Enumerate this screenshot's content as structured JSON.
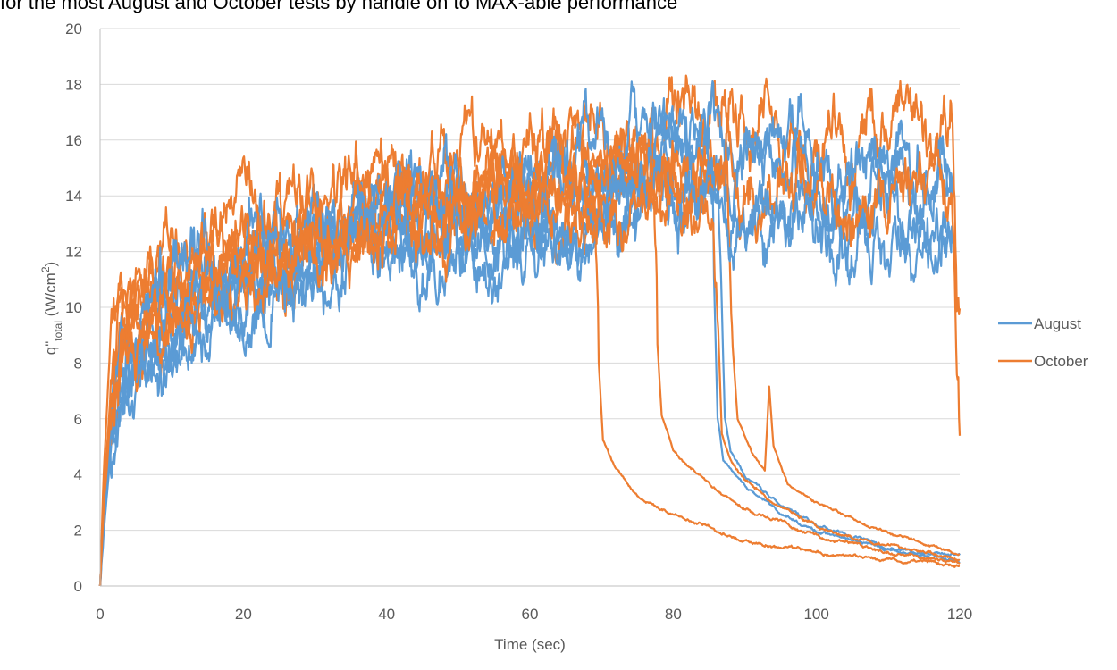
{
  "chart_data": {
    "type": "line",
    "title": "for the most August and October tests by handle on to MAX-able performance",
    "xlabel": "Time (sec)",
    "ylabel": {
      "main": "q\"",
      "subscript": "total",
      "units_pre": " (W/cm",
      "units_sup": "2",
      "units_post": ")"
    },
    "xlim": [
      0,
      120
    ],
    "ylim": [
      0,
      20
    ],
    "xticks": [
      0,
      20,
      40,
      60,
      80,
      100,
      120
    ],
    "yticks": [
      0,
      2,
      4,
      6,
      8,
      10,
      12,
      14,
      16,
      18,
      20
    ],
    "grid": "horizontal",
    "legend_position": "right",
    "series": [
      {
        "name": "August",
        "color": "#5b9bd5",
        "runs": [
          {
            "seed": 11,
            "trend": [
              [
                0,
                0
              ],
              [
                0.5,
                2
              ],
              [
                1.5,
                5
              ],
              [
                3,
                8.5
              ],
              [
                6,
                8
              ],
              [
                10,
                9
              ],
              [
                20,
                10.5
              ],
              [
                30,
                11.5
              ],
              [
                40,
                12.5
              ],
              [
                50,
                12.5
              ],
              [
                60,
                13
              ],
              [
                70,
                13.5
              ],
              [
                80,
                13.5
              ],
              [
                90,
                13.5
              ],
              [
                100,
                13
              ],
              [
                110,
                13
              ],
              [
                119,
                13
              ]
            ],
            "amp": 0.9
          },
          {
            "seed": 23,
            "trend": [
              [
                0,
                0
              ],
              [
                0.5,
                3
              ],
              [
                1.5,
                6
              ],
              [
                3,
                9
              ],
              [
                6,
                9.5
              ],
              [
                10,
                10
              ],
              [
                20,
                11.5
              ],
              [
                30,
                12.5
              ],
              [
                40,
                13
              ],
              [
                50,
                13.5
              ],
              [
                60,
                14
              ],
              [
                70,
                15
              ],
              [
                80,
                15
              ],
              [
                90,
                14.5
              ],
              [
                100,
                14
              ],
              [
                110,
                14.5
              ],
              [
                119,
                14.5
              ]
            ],
            "amp": 0.9
          },
          {
            "seed": 37,
            "trend": [
              [
                0,
                0
              ],
              [
                0.5,
                3
              ],
              [
                1.5,
                6
              ],
              [
                3,
                9
              ],
              [
                6,
                8.5
              ],
              [
                10,
                9.5
              ],
              [
                20,
                11
              ],
              [
                30,
                12
              ],
              [
                40,
                13
              ],
              [
                50,
                14
              ],
              [
                60,
                14.5
              ],
              [
                70,
                15
              ],
              [
                80,
                15.5
              ],
              [
                85,
                15.5
              ],
              [
                85.6,
                12
              ],
              [
                86.2,
                6
              ],
              [
                87,
                4.5
              ],
              [
                90,
                3.6
              ],
              [
                95,
                2.6
              ],
              [
                100,
                2
              ],
              [
                110,
                1.3
              ],
              [
                120,
                0.9
              ]
            ],
            "amp": 0.9,
            "end_amp": 0.05,
            "drop_at": 85.6
          },
          {
            "seed": 41,
            "trend": [
              [
                0,
                0
              ],
              [
                0.5,
                2.5
              ],
              [
                1.5,
                5
              ],
              [
                3,
                8
              ],
              [
                6,
                8.5
              ],
              [
                10,
                9
              ],
              [
                20,
                10.5
              ],
              [
                30,
                11.5
              ],
              [
                40,
                12
              ],
              [
                50,
                12
              ],
              [
                60,
                12.5
              ],
              [
                70,
                13
              ],
              [
                80,
                13
              ],
              [
                86,
                13.5
              ],
              [
                86.6,
                12
              ],
              [
                87.2,
                6
              ],
              [
                88,
                4.8
              ],
              [
                90,
                4
              ],
              [
                95,
                2.9
              ],
              [
                100,
                2.2
              ],
              [
                110,
                1.4
              ],
              [
                120,
                1.0
              ]
            ],
            "amp": 0.9,
            "end_amp": 0.05,
            "drop_at": 86.6
          },
          {
            "seed": 53,
            "trend": [
              [
                0,
                0
              ],
              [
                0.5,
                3
              ],
              [
                1.5,
                6
              ],
              [
                3,
                9.5
              ],
              [
                6,
                10
              ],
              [
                10,
                10.5
              ],
              [
                20,
                12
              ],
              [
                30,
                13
              ],
              [
                40,
                13.5
              ],
              [
                50,
                14
              ],
              [
                60,
                14.5
              ],
              [
                70,
                15.5
              ],
              [
                80,
                16
              ],
              [
                90,
                15.5
              ],
              [
                100,
                15
              ],
              [
                110,
                15
              ],
              [
                119,
                15.5
              ]
            ],
            "amp": 1.0
          },
          {
            "seed": 67,
            "trend": [
              [
                0,
                0
              ],
              [
                0.5,
                2.5
              ],
              [
                1.5,
                5.5
              ],
              [
                3,
                8.5
              ],
              [
                6,
                7.5
              ],
              [
                10,
                8.5
              ],
              [
                20,
                10
              ],
              [
                30,
                11.5
              ],
              [
                40,
                12
              ],
              [
                50,
                12.5
              ],
              [
                60,
                13
              ],
              [
                70,
                13.5
              ],
              [
                80,
                14
              ],
              [
                90,
                13.5
              ],
              [
                100,
                13
              ],
              [
                110,
                12.5
              ],
              [
                119,
                12
              ]
            ],
            "amp": 0.9
          }
        ]
      },
      {
        "name": "October",
        "color": "#ed7d31",
        "runs": [
          {
            "seed": 71,
            "trend": [
              [
                0,
                0
              ],
              [
                0.5,
                4
              ],
              [
                1.5,
                9
              ],
              [
                3,
                10.5
              ],
              [
                6,
                10
              ],
              [
                10,
                11
              ],
              [
                20,
                12
              ],
              [
                30,
                13
              ],
              [
                40,
                14
              ],
              [
                50,
                14.5
              ],
              [
                60,
                15.5
              ],
              [
                70,
                16
              ],
              [
                80,
                16.5
              ],
              [
                90,
                16
              ],
              [
                100,
                16
              ],
              [
                110,
                16
              ],
              [
                119,
                16
              ],
              [
                119.6,
                10
              ],
              [
                120,
                8.8
              ]
            ],
            "amp": 1.0
          },
          {
            "seed": 83,
            "trend": [
              [
                0,
                0
              ],
              [
                0.5,
                3
              ],
              [
                1.5,
                7
              ],
              [
                3,
                9.5
              ],
              [
                6,
                10
              ],
              [
                10,
                10.5
              ],
              [
                20,
                11.5
              ],
              [
                30,
                12.5
              ],
              [
                40,
                13.5
              ],
              [
                50,
                14
              ],
              [
                60,
                14.5
              ],
              [
                69,
                13.5
              ],
              [
                69.6,
                8
              ],
              [
                70.2,
                5.2
              ],
              [
                72,
                4.2
              ],
              [
                75,
                3.3
              ],
              [
                80,
                2.6
              ],
              [
                90,
                1.6
              ],
              [
                100,
                1.2
              ],
              [
                110,
                0.95
              ],
              [
                120,
                0.75
              ]
            ],
            "amp": 0.9,
            "end_amp": 0.05,
            "drop_at": 69.6
          },
          {
            "seed": 97,
            "trend": [
              [
                0,
                0
              ],
              [
                0.5,
                3.5
              ],
              [
                1.5,
                7
              ],
              [
                3,
                9.5
              ],
              [
                6,
                10.5
              ],
              [
                10,
                11
              ],
              [
                20,
                12
              ],
              [
                30,
                12.5
              ],
              [
                40,
                13.5
              ],
              [
                50,
                14
              ],
              [
                60,
                15
              ],
              [
                70,
                15.5
              ],
              [
                77,
                15
              ],
              [
                77.7,
                9
              ],
              [
                78.4,
                6
              ],
              [
                80,
                4.8
              ],
              [
                85,
                3.6
              ],
              [
                90,
                2.8
              ],
              [
                100,
                1.8
              ],
              [
                110,
                1.2
              ],
              [
                120,
                0.8
              ]
            ],
            "amp": 0.9,
            "end_amp": 0.05,
            "drop_at": 77.7
          },
          {
            "seed": 101,
            "trend": [
              [
                0,
                0
              ],
              [
                0.5,
                3
              ],
              [
                1.5,
                6.5
              ],
              [
                3,
                9
              ],
              [
                6,
                9.5
              ],
              [
                10,
                10
              ],
              [
                20,
                11
              ],
              [
                30,
                12
              ],
              [
                40,
                13
              ],
              [
                50,
                13.5
              ],
              [
                60,
                14
              ],
              [
                70,
                14.5
              ],
              [
                80,
                15
              ],
              [
                87.5,
                14.5
              ],
              [
                88.2,
                9
              ],
              [
                89,
                6
              ],
              [
                91,
                4.8
              ],
              [
                92.8,
                4.1
              ],
              [
                93.4,
                7.1
              ],
              [
                94,
                5
              ],
              [
                96,
                3.7
              ],
              [
                100,
                3
              ],
              [
                110,
                1.9
              ],
              [
                120,
                1.2
              ]
            ],
            "amp": 0.9,
            "end_amp": 0.04,
            "drop_at": 88.2
          },
          {
            "seed": 113,
            "trend": [
              [
                0,
                0
              ],
              [
                0.5,
                3
              ],
              [
                1.5,
                6
              ],
              [
                3,
                9
              ],
              [
                6,
                9
              ],
              [
                10,
                10
              ],
              [
                20,
                11.5
              ],
              [
                30,
                12.5
              ],
              [
                40,
                13
              ],
              [
                50,
                13.5
              ],
              [
                60,
                14.5
              ],
              [
                70,
                15
              ],
              [
                80,
                15.5
              ],
              [
                90,
                15
              ],
              [
                100,
                14.5
              ],
              [
                110,
                14
              ],
              [
                119,
                13.5
              ],
              [
                119.5,
                8
              ],
              [
                120,
                5.2
              ]
            ],
            "amp": 1.0
          },
          {
            "seed": 127,
            "trend": [
              [
                0,
                0
              ],
              [
                0.5,
                3
              ],
              [
                1.5,
                6.5
              ],
              [
                3,
                9
              ],
              [
                6,
                9.5
              ],
              [
                10,
                10.5
              ],
              [
                20,
                11.5
              ],
              [
                30,
                12
              ],
              [
                40,
                12.5
              ],
              [
                50,
                13
              ],
              [
                60,
                13.5
              ],
              [
                70,
                14
              ],
              [
                80,
                13.5
              ],
              [
                85.5,
                13.5
              ],
              [
                86.2,
                10
              ],
              [
                86.8,
                5.5
              ],
              [
                88,
                4.5
              ],
              [
                90,
                3.8
              ],
              [
                95,
                2.8
              ],
              [
                100,
                2.1
              ],
              [
                110,
                1.4
              ],
              [
                120,
                1.0
              ]
            ],
            "amp": 0.9,
            "end_amp": 0.05,
            "drop_at": 86.2
          }
        ]
      }
    ]
  }
}
